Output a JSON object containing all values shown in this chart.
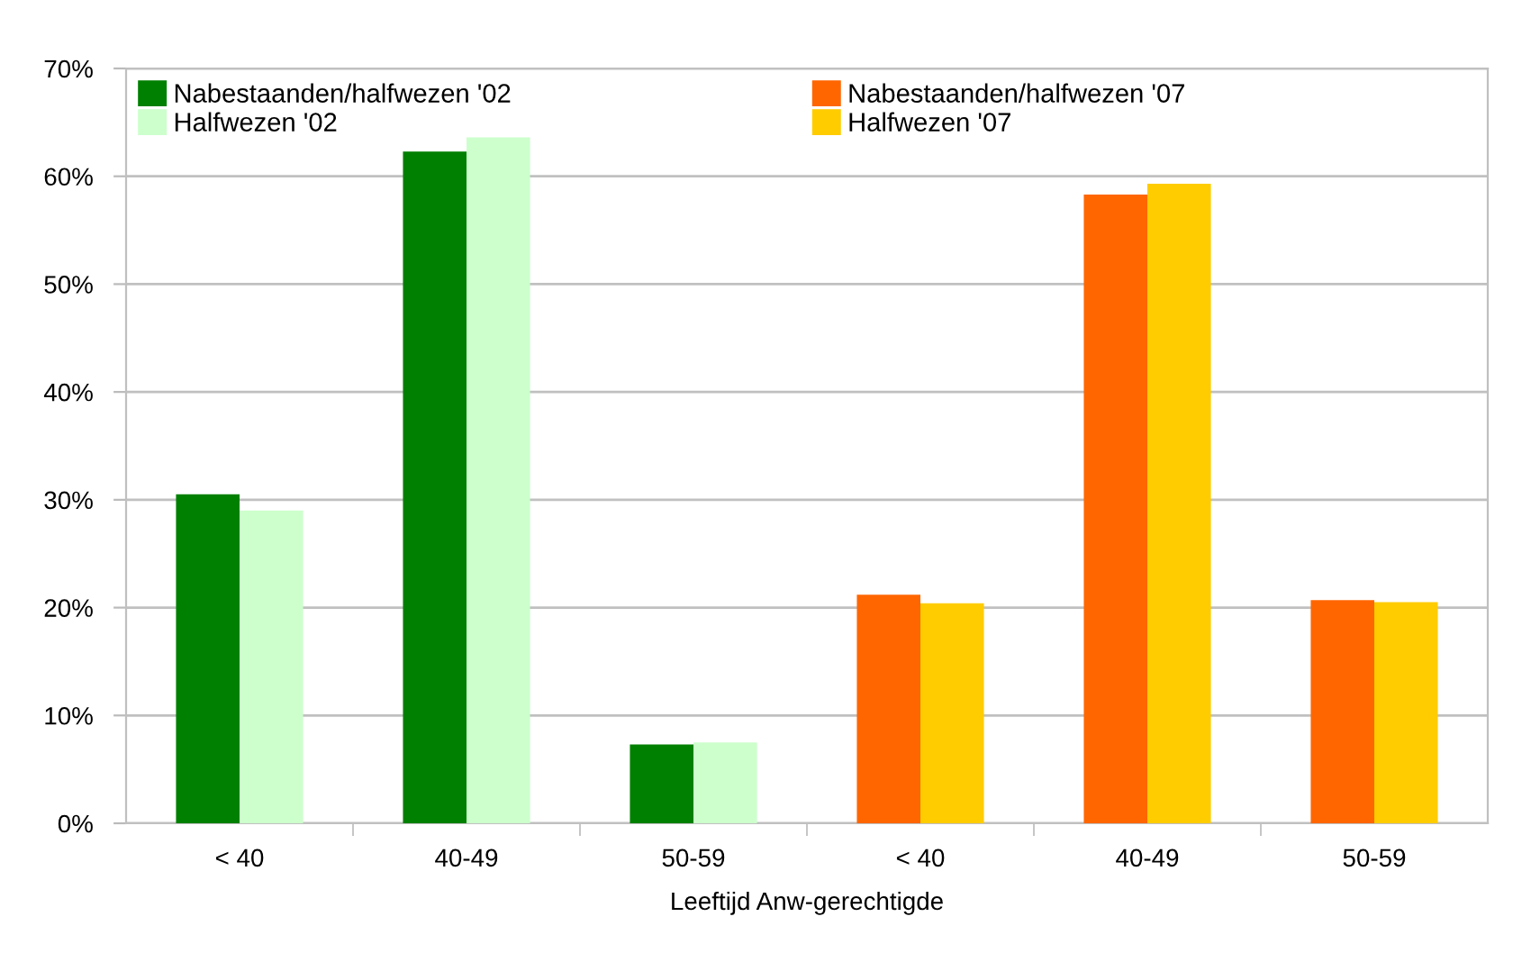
{
  "chart_data": {
    "type": "bar",
    "xlabel": "Leeftijd Anw-gerechtigde",
    "categories": [
      "< 40",
      "40-49",
      "50-59",
      "< 40",
      "40-49",
      "50-59"
    ],
    "series": [
      {
        "name": "Nabestaanden/halfwezen '02",
        "color": "#008000",
        "values": [
          30.5,
          62.3,
          7.3,
          null,
          null,
          null
        ]
      },
      {
        "name": "Halfwezen '02",
        "color": "#ccffcc",
        "values": [
          29.0,
          63.6,
          7.5,
          null,
          null,
          null
        ]
      },
      {
        "name": "Nabestaanden/halfwezen '07",
        "color": "#ff6600",
        "values": [
          null,
          null,
          null,
          21.2,
          58.3,
          20.7
        ]
      },
      {
        "name": "Halfwezen '07",
        "color": "#ffcc00",
        "values": [
          null,
          null,
          null,
          20.4,
          59.3,
          20.5
        ]
      }
    ],
    "ylim": [
      0,
      70
    ],
    "yticks": [
      {
        "value": 0,
        "label": "0%"
      },
      {
        "value": 10,
        "label": "10%"
      },
      {
        "value": 20,
        "label": "20%"
      },
      {
        "value": 30,
        "label": "30%"
      },
      {
        "value": 40,
        "label": "40%"
      },
      {
        "value": 50,
        "label": "50%"
      },
      {
        "value": 60,
        "label": "60%"
      },
      {
        "value": 70,
        "label": "70%"
      }
    ],
    "grid": "y",
    "legend": "top left"
  }
}
